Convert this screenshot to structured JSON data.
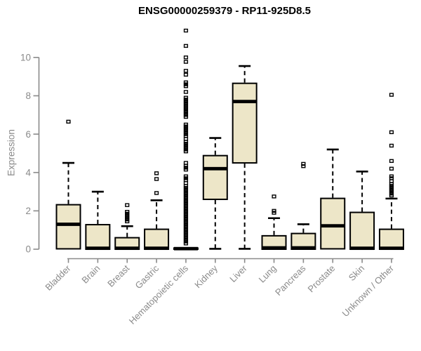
{
  "chart_data": {
    "type": "box",
    "title": "ENSG00000259379 - RP11-925D8.5",
    "ylabel": "Expression",
    "xlabel": "",
    "ylim": [
      0,
      11.6
    ],
    "yticks": [
      0,
      2,
      4,
      6,
      8,
      10
    ],
    "grid": false,
    "legend": "none",
    "box_fill_color": "#EDE6C8",
    "box_border_color": "#000000",
    "axis_color": "#8a8a8a",
    "title_color": "#000000",
    "series": [
      {
        "label": "Bladder",
        "low": 0,
        "q1": 0.02,
        "median": 1.3,
        "q3": 2.32,
        "high": 4.5,
        "outliers": [
          6.65
        ]
      },
      {
        "label": "Brain",
        "low": 0,
        "q1": 0.0,
        "median": 0.05,
        "q3": 1.28,
        "high": 3.0,
        "outliers": []
      },
      {
        "label": "Breast",
        "low": 0,
        "q1": 0.0,
        "median": 0.05,
        "q3": 0.6,
        "high": 1.2,
        "outliers": [
          1.45,
          1.55,
          1.65,
          1.75,
          1.85,
          1.95,
          2.3
        ]
      },
      {
        "label": "Gastric",
        "low": 0,
        "q1": 0.0,
        "median": 0.05,
        "q3": 1.04,
        "high": 2.55,
        "outliers": [
          2.93,
          3.66,
          3.96
        ]
      },
      {
        "label": "Hematopoietic cells",
        "low": 0,
        "q1": 0.0,
        "median": 0.03,
        "q3": 0.06,
        "high": 0.1,
        "outliers": [
          0.3,
          0.4,
          0.5,
          0.6,
          0.7,
          0.8,
          0.9,
          1.0,
          1.1,
          1.2,
          1.3,
          1.4,
          1.5,
          1.6,
          1.7,
          1.8,
          1.9,
          2.0,
          2.1,
          2.2,
          2.3,
          2.4,
          2.5,
          2.6,
          2.7,
          2.8,
          2.9,
          3.0,
          3.1,
          3.2,
          3.3,
          3.45,
          3.6,
          3.7,
          3.8,
          4.15,
          4.25,
          4.35,
          4.5,
          5.1,
          5.2,
          5.3,
          5.4,
          5.5,
          5.6,
          5.75,
          5.9,
          6.0,
          6.1,
          6.2,
          6.3,
          6.4,
          6.5,
          6.9,
          7.0,
          7.1,
          7.2,
          7.3,
          7.4,
          7.5,
          7.6,
          7.7,
          7.8,
          7.9,
          8.2,
          8.5,
          8.6,
          8.7,
          9.1,
          9.3,
          9.77,
          10.0,
          10.6,
          11.4
        ]
      },
      {
        "label": "Kidney",
        "low": 0.02,
        "q1": 2.6,
        "median": 4.2,
        "q3": 4.88,
        "high": 5.8,
        "outliers": []
      },
      {
        "label": "Liver",
        "low": 0.02,
        "q1": 4.5,
        "median": 7.7,
        "q3": 8.65,
        "high": 9.55,
        "outliers": []
      },
      {
        "label": "Lung",
        "low": 0,
        "q1": 0.0,
        "median": 0.07,
        "q3": 0.7,
        "high": 1.62,
        "outliers": [
          1.9,
          2.0,
          2.75
        ]
      },
      {
        "label": "Pancreas",
        "low": 0,
        "q1": 0.0,
        "median": 0.07,
        "q3": 0.82,
        "high": 1.3,
        "outliers": [
          4.33,
          4.45
        ]
      },
      {
        "label": "Prostate",
        "low": 0,
        "q1": 0.02,
        "median": 1.22,
        "q3": 2.65,
        "high": 5.2,
        "outliers": []
      },
      {
        "label": "Skin",
        "low": 0,
        "q1": 0.0,
        "median": 0.05,
        "q3": 1.92,
        "high": 4.05,
        "outliers": []
      },
      {
        "label": "Unknown / Other",
        "low": 0,
        "q1": 0.0,
        "median": 0.05,
        "q3": 1.04,
        "high": 2.64,
        "outliers": [
          2.8,
          2.9,
          3.0,
          3.1,
          3.2,
          3.3,
          3.4,
          3.55,
          3.7,
          3.8,
          4.2,
          4.6,
          5.4,
          6.1,
          8.05
        ]
      }
    ]
  }
}
